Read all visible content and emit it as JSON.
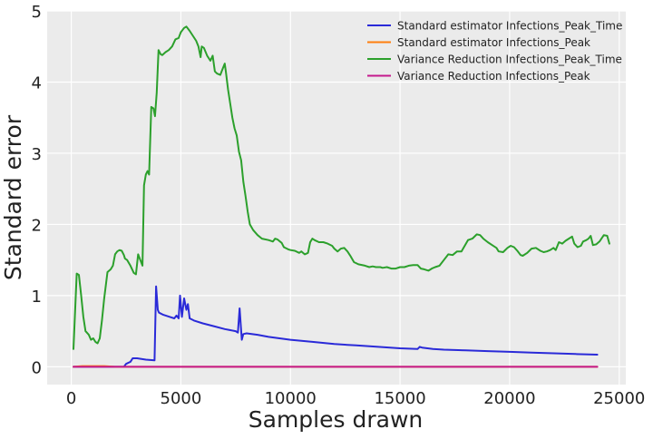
{
  "chart_data": {
    "type": "line",
    "title": "",
    "xlabel": "Samples drawn",
    "ylabel": "Standard error",
    "xlim": [
      -1100,
      25300
    ],
    "ylim": [
      -0.25,
      5.0
    ],
    "xticks": [
      0,
      5000,
      10000,
      15000,
      20000,
      25000
    ],
    "xtick_labels": [
      "0",
      "5000",
      "10000",
      "15000",
      "20000",
      "25000"
    ],
    "yticks": [
      0,
      1,
      2,
      3,
      4,
      5
    ],
    "ytick_labels": [
      "0",
      "1",
      "2",
      "3",
      "4",
      "5"
    ],
    "grid": true,
    "background": "#ebebeb",
    "grid_color": "#ffffff",
    "legend_position": "top-right",
    "series": [
      {
        "name": "Standard estimator Infections_Peak_Time",
        "color": "#2a2ad8",
        "points": [
          [
            100,
            0.0
          ],
          [
            2400,
            0.0
          ],
          [
            2500,
            0.04
          ],
          [
            2700,
            0.07
          ],
          [
            2800,
            0.12
          ],
          [
            3000,
            0.12
          ],
          [
            3400,
            0.1
          ],
          [
            3800,
            0.09
          ],
          [
            3870,
            1.13
          ],
          [
            3950,
            0.8
          ],
          [
            4000,
            0.76
          ],
          [
            4200,
            0.73
          ],
          [
            4500,
            0.7
          ],
          [
            4700,
            0.68
          ],
          [
            4800,
            0.72
          ],
          [
            4900,
            0.68
          ],
          [
            4960,
            1.0
          ],
          [
            5050,
            0.7
          ],
          [
            5150,
            0.96
          ],
          [
            5250,
            0.8
          ],
          [
            5320,
            0.88
          ],
          [
            5400,
            0.68
          ],
          [
            5600,
            0.65
          ],
          [
            6000,
            0.61
          ],
          [
            6500,
            0.57
          ],
          [
            7000,
            0.53
          ],
          [
            7500,
            0.5
          ],
          [
            7600,
            0.48
          ],
          [
            7680,
            0.82
          ],
          [
            7780,
            0.38
          ],
          [
            7850,
            0.46
          ],
          [
            8000,
            0.47
          ],
          [
            8500,
            0.45
          ],
          [
            9000,
            0.42
          ],
          [
            9500,
            0.4
          ],
          [
            10000,
            0.38
          ],
          [
            11000,
            0.35
          ],
          [
            12000,
            0.32
          ],
          [
            13000,
            0.3
          ],
          [
            14000,
            0.28
          ],
          [
            15000,
            0.26
          ],
          [
            15800,
            0.25
          ],
          [
            15900,
            0.28
          ],
          [
            16000,
            0.27
          ],
          [
            16500,
            0.25
          ],
          [
            17000,
            0.24
          ],
          [
            18000,
            0.23
          ],
          [
            19000,
            0.22
          ],
          [
            20000,
            0.21
          ],
          [
            21000,
            0.2
          ],
          [
            22000,
            0.19
          ],
          [
            23000,
            0.18
          ],
          [
            24000,
            0.17
          ]
        ]
      },
      {
        "name": "Standard estimator Infections_Peak",
        "color": "#ff7f0e",
        "points": [
          [
            100,
            0.0
          ],
          [
            500,
            0.01
          ],
          [
            1000,
            0.01
          ],
          [
            1500,
            0.01
          ],
          [
            2000,
            0.0
          ],
          [
            5000,
            0.0
          ],
          [
            10000,
            0.0
          ],
          [
            15000,
            0.0
          ],
          [
            20000,
            0.0
          ],
          [
            24000,
            0.0
          ]
        ]
      },
      {
        "name": "Variance Reduction Infections_Peak_Time",
        "color": "#2ca02c",
        "points": [
          [
            100,
            0.25
          ],
          [
            250,
            1.31
          ],
          [
            350,
            1.29
          ],
          [
            450,
            1.0
          ],
          [
            550,
            0.7
          ],
          [
            650,
            0.5
          ],
          [
            800,
            0.45
          ],
          [
            900,
            0.38
          ],
          [
            1000,
            0.4
          ],
          [
            1100,
            0.35
          ],
          [
            1200,
            0.33
          ],
          [
            1300,
            0.4
          ],
          [
            1400,
            0.65
          ],
          [
            1500,
            0.95
          ],
          [
            1650,
            1.33
          ],
          [
            1800,
            1.37
          ],
          [
            1900,
            1.42
          ],
          [
            2000,
            1.58
          ],
          [
            2100,
            1.62
          ],
          [
            2200,
            1.64
          ],
          [
            2300,
            1.63
          ],
          [
            2400,
            1.57
          ],
          [
            2450,
            1.52
          ],
          [
            2550,
            1.5
          ],
          [
            2700,
            1.42
          ],
          [
            2850,
            1.32
          ],
          [
            2950,
            1.3
          ],
          [
            3050,
            1.58
          ],
          [
            3150,
            1.5
          ],
          [
            3250,
            1.42
          ],
          [
            3320,
            2.55
          ],
          [
            3400,
            2.7
          ],
          [
            3480,
            2.75
          ],
          [
            3550,
            2.7
          ],
          [
            3650,
            3.65
          ],
          [
            3750,
            3.63
          ],
          [
            3820,
            3.52
          ],
          [
            3900,
            3.85
          ],
          [
            3980,
            4.45
          ],
          [
            4080,
            4.39
          ],
          [
            4150,
            4.38
          ],
          [
            4300,
            4.42
          ],
          [
            4450,
            4.45
          ],
          [
            4600,
            4.5
          ],
          [
            4750,
            4.6
          ],
          [
            4900,
            4.62
          ],
          [
            5000,
            4.7
          ],
          [
            5150,
            4.76
          ],
          [
            5250,
            4.78
          ],
          [
            5400,
            4.72
          ],
          [
            5550,
            4.65
          ],
          [
            5700,
            4.58
          ],
          [
            5800,
            4.5
          ],
          [
            5900,
            4.35
          ],
          [
            5950,
            4.5
          ],
          [
            6050,
            4.48
          ],
          [
            6200,
            4.37
          ],
          [
            6350,
            4.3
          ],
          [
            6450,
            4.37
          ],
          [
            6550,
            4.15
          ],
          [
            6650,
            4.12
          ],
          [
            6800,
            4.1
          ],
          [
            6900,
            4.18
          ],
          [
            7000,
            4.26
          ],
          [
            7050,
            4.15
          ],
          [
            7150,
            3.9
          ],
          [
            7250,
            3.7
          ],
          [
            7350,
            3.5
          ],
          [
            7450,
            3.35
          ],
          [
            7550,
            3.25
          ],
          [
            7650,
            3.02
          ],
          [
            7750,
            2.9
          ],
          [
            7850,
            2.6
          ],
          [
            7950,
            2.4
          ],
          [
            8050,
            2.18
          ],
          [
            8150,
            2.0
          ],
          [
            8300,
            1.92
          ],
          [
            8500,
            1.85
          ],
          [
            8700,
            1.8
          ],
          [
            9000,
            1.78
          ],
          [
            9200,
            1.76
          ],
          [
            9300,
            1.8
          ],
          [
            9400,
            1.79
          ],
          [
            9600,
            1.74
          ],
          [
            9700,
            1.68
          ],
          [
            9900,
            1.65
          ],
          [
            10000,
            1.64
          ],
          [
            10200,
            1.63
          ],
          [
            10400,
            1.6
          ],
          [
            10500,
            1.62
          ],
          [
            10650,
            1.58
          ],
          [
            10800,
            1.6
          ],
          [
            10900,
            1.75
          ],
          [
            11000,
            1.8
          ],
          [
            11100,
            1.78
          ],
          [
            11300,
            1.75
          ],
          [
            11500,
            1.75
          ],
          [
            11700,
            1.73
          ],
          [
            11900,
            1.7
          ],
          [
            12000,
            1.66
          ],
          [
            12150,
            1.62
          ],
          [
            12300,
            1.66
          ],
          [
            12450,
            1.67
          ],
          [
            12600,
            1.62
          ],
          [
            12750,
            1.55
          ],
          [
            12900,
            1.47
          ],
          [
            13100,
            1.44
          ],
          [
            13400,
            1.42
          ],
          [
            13600,
            1.4
          ],
          [
            13750,
            1.41
          ],
          [
            13900,
            1.4
          ],
          [
            14100,
            1.4
          ],
          [
            14200,
            1.39
          ],
          [
            14400,
            1.4
          ],
          [
            14600,
            1.38
          ],
          [
            14800,
            1.38
          ],
          [
            15000,
            1.4
          ],
          [
            15200,
            1.4
          ],
          [
            15400,
            1.42
          ],
          [
            15600,
            1.43
          ],
          [
            15800,
            1.43
          ],
          [
            15950,
            1.38
          ],
          [
            16100,
            1.37
          ],
          [
            16300,
            1.35
          ],
          [
            16450,
            1.38
          ],
          [
            16600,
            1.4
          ],
          [
            16800,
            1.42
          ],
          [
            17000,
            1.5
          ],
          [
            17200,
            1.58
          ],
          [
            17400,
            1.57
          ],
          [
            17600,
            1.62
          ],
          [
            17800,
            1.62
          ],
          [
            17950,
            1.7
          ],
          [
            18100,
            1.78
          ],
          [
            18300,
            1.8
          ],
          [
            18500,
            1.86
          ],
          [
            18650,
            1.85
          ],
          [
            18800,
            1.8
          ],
          [
            19000,
            1.75
          ],
          [
            19200,
            1.71
          ],
          [
            19400,
            1.67
          ],
          [
            19500,
            1.62
          ],
          [
            19700,
            1.61
          ],
          [
            19900,
            1.67
          ],
          [
            20050,
            1.7
          ],
          [
            20200,
            1.68
          ],
          [
            20350,
            1.63
          ],
          [
            20500,
            1.57
          ],
          [
            20600,
            1.56
          ],
          [
            20800,
            1.6
          ],
          [
            21000,
            1.66
          ],
          [
            21200,
            1.67
          ],
          [
            21400,
            1.63
          ],
          [
            21550,
            1.61
          ],
          [
            21700,
            1.62
          ],
          [
            21850,
            1.64
          ],
          [
            22000,
            1.67
          ],
          [
            22100,
            1.64
          ],
          [
            22250,
            1.75
          ],
          [
            22400,
            1.73
          ],
          [
            22550,
            1.77
          ],
          [
            22700,
            1.8
          ],
          [
            22850,
            1.83
          ],
          [
            22950,
            1.73
          ],
          [
            23100,
            1.68
          ],
          [
            23250,
            1.7
          ],
          [
            23350,
            1.76
          ],
          [
            23500,
            1.78
          ],
          [
            23600,
            1.8
          ],
          [
            23700,
            1.84
          ],
          [
            23800,
            1.71
          ],
          [
            23950,
            1.72
          ],
          [
            24100,
            1.76
          ],
          [
            24300,
            1.85
          ],
          [
            24450,
            1.84
          ],
          [
            24550,
            1.73
          ]
        ]
      },
      {
        "name": "Variance Reduction Infections_Peak",
        "color": "#c41a8c",
        "points": [
          [
            100,
            0.0
          ],
          [
            500,
            0.0
          ],
          [
            1000,
            0.0
          ],
          [
            5000,
            0.0
          ],
          [
            10000,
            0.0
          ],
          [
            15000,
            0.0
          ],
          [
            20000,
            0.0
          ],
          [
            24000,
            0.0
          ]
        ]
      }
    ]
  }
}
